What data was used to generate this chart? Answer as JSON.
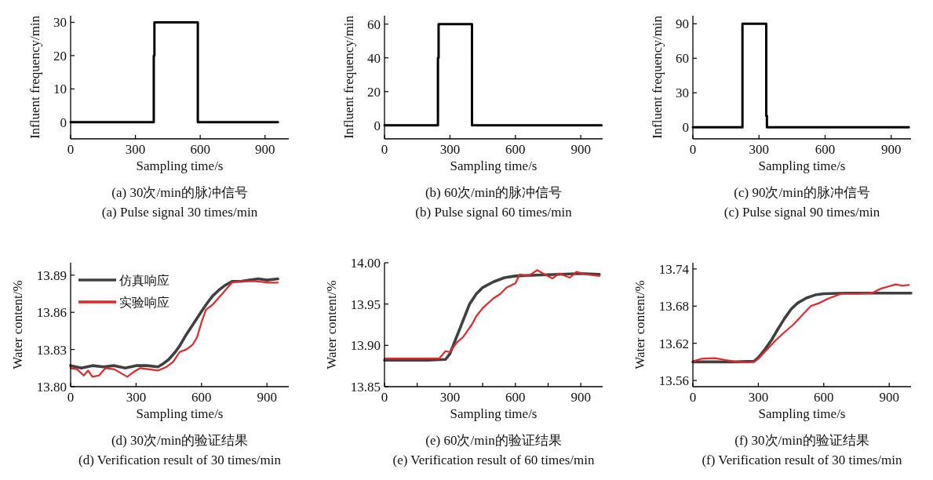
{
  "chart_data": [
    {
      "type": "line",
      "xlabel": "Sampling time/s",
      "ylabel": "Influent frequency/min",
      "xlim": [
        0,
        1010
      ],
      "xticks": [
        0,
        300,
        600,
        900
      ],
      "ylim": [
        -5,
        32
      ],
      "yticks": [
        0,
        10,
        20,
        30
      ],
      "grid": false,
      "legend": false,
      "series": [
        {
          "color": "#000000",
          "x": [
            0,
            385,
            385,
            388,
            388,
            589,
            589,
            960
          ],
          "values": [
            0,
            0,
            20,
            20,
            30,
            30,
            0,
            0
          ]
        }
      ],
      "annotations": [
        "(a) 30次/min的脉冲信号",
        "(a) Pulse signal 30 times/min"
      ]
    },
    {
      "type": "line",
      "xlabel": "Sampling time/s",
      "ylabel": "Influent frequency/min",
      "xlim": [
        0,
        1000
      ],
      "xticks": [
        0,
        300,
        600,
        900
      ],
      "ylim": [
        -8,
        65
      ],
      "yticks": [
        0,
        20,
        40,
        60
      ],
      "grid": false,
      "legend": false,
      "series": [
        {
          "color": "#000000",
          "x": [
            0,
            245,
            245,
            248,
            248,
            401,
            401,
            995
          ],
          "values": [
            0,
            0,
            40,
            40,
            60,
            60,
            0,
            0
          ]
        }
      ],
      "annotations": [
        "(b) 60次/min的脉冲信号",
        "(b) Pulse signal 60 times/min"
      ]
    },
    {
      "type": "line",
      "xlabel": "Sampling time/s",
      "ylabel": "Influent frequency/min",
      "xlim": [
        0,
        990
      ],
      "xticks": [
        0,
        300,
        600,
        900
      ],
      "ylim": [
        -10,
        97
      ],
      "yticks": [
        0,
        30,
        60,
        90
      ],
      "grid": false,
      "legend": false,
      "series": [
        {
          "color": "#000000",
          "x": [
            0,
            225,
            225,
            333,
            333,
            336,
            336,
            980
          ],
          "values": [
            0,
            0,
            90,
            90,
            10,
            10,
            0,
            0
          ]
        }
      ],
      "annotations": [
        "(c) 90次/min的脉冲信号",
        "(c) Pulse signal 90 times/min"
      ]
    },
    {
      "type": "line",
      "xlabel": "Sampling time/s",
      "ylabel": "Water content/%",
      "xlim": [
        0,
        1000
      ],
      "xticks": [
        0,
        300,
        600,
        900
      ],
      "ylim": [
        13.8,
        13.9
      ],
      "yticks": [
        {
          "value": 13.8,
          "label": "13.80"
        },
        {
          "value": 13.83,
          "label": "13.83"
        },
        {
          "value": 13.86,
          "label": "13.86"
        },
        {
          "value": 13.89,
          "label": "13.89"
        }
      ],
      "grid": false,
      "legend": "top left",
      "series": [
        {
          "name": "仿真响应",
          "color": "#404040",
          "x": [
            0,
            50,
            100,
            150,
            200,
            250,
            300,
            350,
            400,
            420,
            450,
            480,
            500,
            530,
            560,
            590,
            620,
            650,
            680,
            710,
            740,
            780,
            820,
            860,
            900,
            950
          ],
          "values": [
            13.817,
            13.815,
            13.817,
            13.816,
            13.817,
            13.815,
            13.817,
            13.817,
            13.816,
            13.818,
            13.822,
            13.828,
            13.833,
            13.842,
            13.85,
            13.858,
            13.866,
            13.873,
            13.878,
            13.882,
            13.885,
            13.885,
            13.886,
            13.887,
            13.886,
            13.887
          ]
        },
        {
          "name": "实验响应",
          "color": "#e8262a",
          "x": [
            0,
            30,
            60,
            80,
            100,
            130,
            160,
            200,
            230,
            260,
            290,
            320,
            360,
            400,
            440,
            470,
            500,
            530,
            560,
            580,
            600,
            620,
            650,
            680,
            710,
            740,
            780,
            850,
            900,
            950
          ],
          "values": [
            13.815,
            13.814,
            13.809,
            13.813,
            13.808,
            13.809,
            13.815,
            13.814,
            13.811,
            13.808,
            13.812,
            13.815,
            13.814,
            13.813,
            13.816,
            13.82,
            13.828,
            13.83,
            13.834,
            13.84,
            13.852,
            13.862,
            13.866,
            13.872,
            13.878,
            13.884,
            13.885,
            13.885,
            13.884,
            13.884
          ]
        }
      ],
      "annotations": [
        "(d) 30次/min的验证结果",
        "(d) Verification result of 30 times/min"
      ]
    },
    {
      "type": "line",
      "xlabel": "Sampling time/s",
      "ylabel": "Water content/%",
      "xlim": [
        0,
        1000
      ],
      "xticks": [
        0,
        {
          "value": 150,
          "label": null
        },
        300,
        {
          "value": 450,
          "label": null
        },
        600,
        {
          "value": 750,
          "label": null
        },
        900
      ],
      "ylim": [
        13.85,
        14.0
      ],
      "yticks": [
        {
          "value": 13.85,
          "label": "13.85"
        },
        {
          "value": 13.9,
          "label": "13.90"
        },
        {
          "value": 13.95,
          "label": "13.95"
        },
        {
          "value": 14.0,
          "label": "14.00"
        }
      ],
      "grid": false,
      "legend": false,
      "series": [
        {
          "color": "#404040",
          "x": [
            0,
            100,
            200,
            280,
            300,
            330,
            360,
            390,
            420,
            450,
            500,
            550,
            600,
            700,
            800,
            900,
            985
          ],
          "values": [
            13.882,
            13.882,
            13.882,
            13.883,
            13.89,
            13.91,
            13.93,
            13.95,
            13.962,
            13.97,
            13.977,
            13.982,
            13.984,
            13.985,
            13.986,
            13.987,
            13.986
          ]
        },
        {
          "color": "#e8262a",
          "x": [
            0,
            100,
            200,
            250,
            280,
            300,
            330,
            360,
            400,
            420,
            450,
            500,
            530,
            560,
            600,
            620,
            660,
            700,
            740,
            770,
            800,
            850,
            880,
            920,
            985
          ],
          "values": [
            13.884,
            13.884,
            13.884,
            13.884,
            13.893,
            13.892,
            13.903,
            13.91,
            13.925,
            13.935,
            13.945,
            13.957,
            13.962,
            13.97,
            13.975,
            13.986,
            13.984,
            13.991,
            13.985,
            13.981,
            13.987,
            13.982,
            13.989,
            13.986,
            13.984
          ]
        }
      ],
      "annotations": [
        "(e) 60次/min的验证结果",
        "(e) Verification result of 60 times/min"
      ]
    },
    {
      "type": "line",
      "xlabel": "Sampling time/s",
      "ylabel": "Water content/%",
      "xlim": [
        0,
        1000
      ],
      "xticks": [
        0,
        300,
        600,
        900
      ],
      "ylim": [
        13.55,
        13.75
      ],
      "yticks": [
        13.56,
        13.62,
        13.68,
        13.74
      ],
      "grid": false,
      "legend": false,
      "series": [
        {
          "color": "#404040",
          "x": [
            0,
            100,
            200,
            280,
            300,
            330,
            360,
            390,
            420,
            450,
            480,
            520,
            560,
            600,
            700,
            800,
            900,
            1000
          ],
          "values": [
            13.59,
            13.59,
            13.59,
            13.591,
            13.597,
            13.61,
            13.625,
            13.643,
            13.66,
            13.675,
            13.685,
            13.693,
            13.698,
            13.7,
            13.701,
            13.701,
            13.701,
            13.701
          ]
        },
        {
          "color": "#e8262a",
          "x": [
            0,
            40,
            100,
            150,
            200,
            250,
            280,
            300,
            340,
            380,
            420,
            460,
            500,
            540,
            580,
            620,
            680,
            760,
            820,
            860,
            900,
            930,
            960,
            990
          ],
          "values": [
            13.591,
            13.595,
            13.596,
            13.593,
            13.59,
            13.589,
            13.59,
            13.595,
            13.61,
            13.625,
            13.638,
            13.65,
            13.665,
            13.68,
            13.685,
            13.692,
            13.7,
            13.7,
            13.701,
            13.708,
            13.712,
            13.715,
            13.713,
            13.714
          ]
        }
      ],
      "annotations": [
        "(f) 30次/min的验证结果",
        "(f) Verification result of 30 times/min"
      ]
    }
  ]
}
